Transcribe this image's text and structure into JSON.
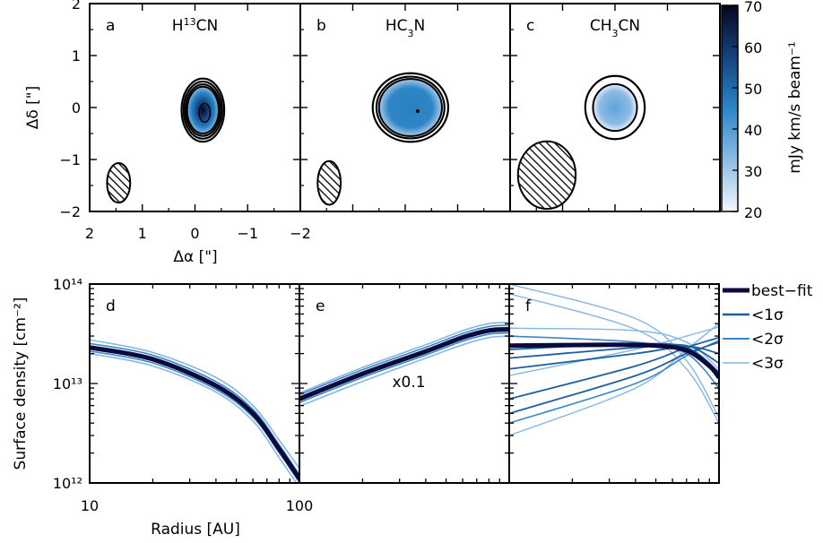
{
  "maps": {
    "xlabel": "Δα [\"]",
    "ylabel": "Δδ [\"]",
    "xlim": [
      2,
      -2
    ],
    "ylim": [
      -2,
      2
    ],
    "xticks": [
      "2",
      "1",
      "0",
      "−1",
      "−2"
    ],
    "yticks": [
      "2",
      "1",
      "0",
      "−1",
      "−2"
    ],
    "colorbar": {
      "label": "mJy km/s beam⁻¹",
      "min": 20,
      "max": 70,
      "ticks": [
        "70",
        "60",
        "50",
        "40",
        "30",
        "20"
      ]
    },
    "panels": [
      {
        "letter": "a",
        "title_html": "H<tspan baseline-shift=\"super\" font-size=\"11\">13</tspan>CN",
        "peak": 70,
        "center": [
          -0.15,
          -0.05
        ],
        "size": [
          0.3,
          0.45
        ],
        "beam": {
          "center": [
            1.45,
            -1.45
          ],
          "axes": [
            0.22,
            0.38
          ]
        }
      },
      {
        "letter": "b",
        "title_html": "HC<tspan baseline-shift=\"sub\" font-size=\"11\">3</tspan>N",
        "peak": 44,
        "center": [
          -0.1,
          0.0
        ],
        "size": [
          0.6,
          0.55
        ],
        "beam": {
          "center": [
            1.45,
            -1.45
          ],
          "axes": [
            0.22,
            0.42
          ]
        }
      },
      {
        "letter": "c",
        "title_html": "CH<tspan baseline-shift=\"sub\" font-size=\"11\">3</tspan>CN",
        "peak": 30,
        "center": [
          0.0,
          0.0
        ],
        "size": [
          0.42,
          0.45
        ],
        "beam": {
          "center": [
            1.3,
            -1.3
          ],
          "axes": [
            0.55,
            0.65
          ]
        }
      }
    ]
  },
  "chart_data": {
    "type": "line",
    "ylabel": "Surface density [cm⁻²]",
    "xlabel": "Radius [AU]",
    "ylim": [
      1000000000000.0,
      100000000000000.0
    ],
    "xlim": [
      10,
      100
    ],
    "yscale": "log",
    "xscale": "log",
    "xticks": [
      "10",
      "100"
    ],
    "yticks": [
      "10¹²",
      "10¹³",
      "10¹⁴"
    ],
    "legend": [
      "best−fit",
      "<1σ",
      "<2σ",
      "<3σ"
    ],
    "legend_position": "right",
    "colors": {
      "best": "#0a0a3c",
      "s1": "#1f5fa0",
      "s2": "#3a86c6",
      "s3": "#86b6e2"
    },
    "panels": [
      {
        "letter": "d",
        "annotation": "",
        "best": [
          [
            10,
            23000000000000.0
          ],
          [
            20,
            17500000000000.0
          ],
          [
            40,
            9500000000000.0
          ],
          [
            60,
            5000000000000.0
          ],
          [
            80,
            2200000000000.0
          ],
          [
            100,
            1100000000000.0
          ]
        ],
        "sigma3_upper": [
          [
            10,
            27500000000000.0
          ],
          [
            20,
            20500000000000.0
          ],
          [
            40,
            11500000000000.0
          ],
          [
            60,
            6000000000000.0
          ],
          [
            80,
            2700000000000.0
          ],
          [
            100,
            1400000000000.0
          ]
        ],
        "sigma3_lower": [
          [
            10,
            20000000000000.0
          ],
          [
            20,
            15000000000000.0
          ],
          [
            40,
            8200000000000.0
          ],
          [
            60,
            4200000000000.0
          ],
          [
            80,
            1800000000000.0
          ],
          [
            100,
            900000000000.0
          ]
        ]
      },
      {
        "letter": "e",
        "annotation": "x0.1",
        "best": [
          [
            10,
            7000000000000.0
          ],
          [
            20,
            12500000000000.0
          ],
          [
            40,
            21000000000000.0
          ],
          [
            60,
            29000000000000.0
          ],
          [
            80,
            34000000000000.0
          ],
          [
            100,
            35000000000000.0
          ]
        ],
        "sigma3_upper": [
          [
            10,
            8000000000000.0
          ],
          [
            20,
            14500000000000.0
          ],
          [
            40,
            24500000000000.0
          ],
          [
            60,
            34000000000000.0
          ],
          [
            80,
            40000000000000.0
          ],
          [
            100,
            41000000000000.0
          ]
        ],
        "sigma3_lower": [
          [
            10,
            5900000000000.0
          ],
          [
            20,
            10500000000000.0
          ],
          [
            40,
            18000000000000.0
          ],
          [
            60,
            24500000000000.0
          ],
          [
            80,
            29000000000000.0
          ],
          [
            100,
            30000000000000.0
          ]
        ]
      },
      {
        "letter": "f",
        "annotation": "",
        "best": [
          [
            10,
            24000000000000.0
          ],
          [
            30,
            24500000000000.0
          ],
          [
            50,
            24000000000000.0
          ],
          [
            70,
            21500000000000.0
          ],
          [
            90,
            15000000000000.0
          ],
          [
            100,
            11500000000000.0
          ]
        ],
        "sigma1": [
          [
            [
              10,
              7000000000000.0
            ],
            [
              40,
              15000000000000.0
            ],
            [
              70,
              23000000000000.0
            ],
            [
              100,
              29000000000000.0
            ]
          ],
          [
            [
              10,
              5000000000000.0
            ],
            [
              40,
              12000000000000.0
            ],
            [
              70,
              20000000000000.0
            ],
            [
              100,
              26000000000000.0
            ]
          ],
          [
            [
              10,
              14000000000000.0
            ],
            [
              40,
              20000000000000.0
            ],
            [
              70,
              23500000000000.0
            ],
            [
              100,
              20000000000000.0
            ]
          ],
          [
            [
              10,
              18000000000000.0
            ],
            [
              40,
              23000000000000.0
            ],
            [
              70,
              24000000000000.0
            ],
            [
              100,
              16000000000000.0
            ]
          ],
          [
            [
              10,
              22000000000000.0
            ],
            [
              40,
              25000000000000.0
            ],
            [
              70,
              23000000000000.0
            ],
            [
              100,
              13000000000000.0
            ]
          ]
        ],
        "sigma2": [
          [
            [
              10,
              4000000000000.0
            ],
            [
              40,
              10000000000000.0
            ],
            [
              70,
              19000000000000.0
            ],
            [
              100,
              27000000000000.0
            ]
          ],
          [
            [
              10,
              30000000000000.0
            ],
            [
              40,
              26000000000000.0
            ],
            [
              70,
              20000000000000.0
            ],
            [
              100,
              9000000000000.0
            ]
          ]
        ],
        "sigma3": [
          [
            [
              10,
              100000000000000.0
            ],
            [
              40,
              45000000000000.0
            ],
            [
              70,
              17000000000000.0
            ],
            [
              100,
              4500000000000.0
            ]
          ],
          [
            [
              10,
              80000000000000.0
            ],
            [
              40,
              35000000000000.0
            ],
            [
              70,
              14000000000000.0
            ],
            [
              100,
              4000000000000.0
            ]
          ],
          [
            [
              10,
              3000000000000.0
            ],
            [
              40,
              9000000000000.0
            ],
            [
              70,
              22000000000000.0
            ],
            [
              100,
              40000000000000.0
            ]
          ],
          [
            [
              10,
              36000000000000.0
            ],
            [
              40,
              34000000000000.0
            ],
            [
              70,
              26000000000000.0
            ],
            [
              100,
              14000000000000.0
            ]
          ],
          [
            [
              10,
              12000000000000.0
            ],
            [
              40,
              22000000000000.0
            ],
            [
              70,
              30000000000000.0
            ],
            [
              100,
              37000000000000.0
            ]
          ]
        ]
      }
    ]
  }
}
